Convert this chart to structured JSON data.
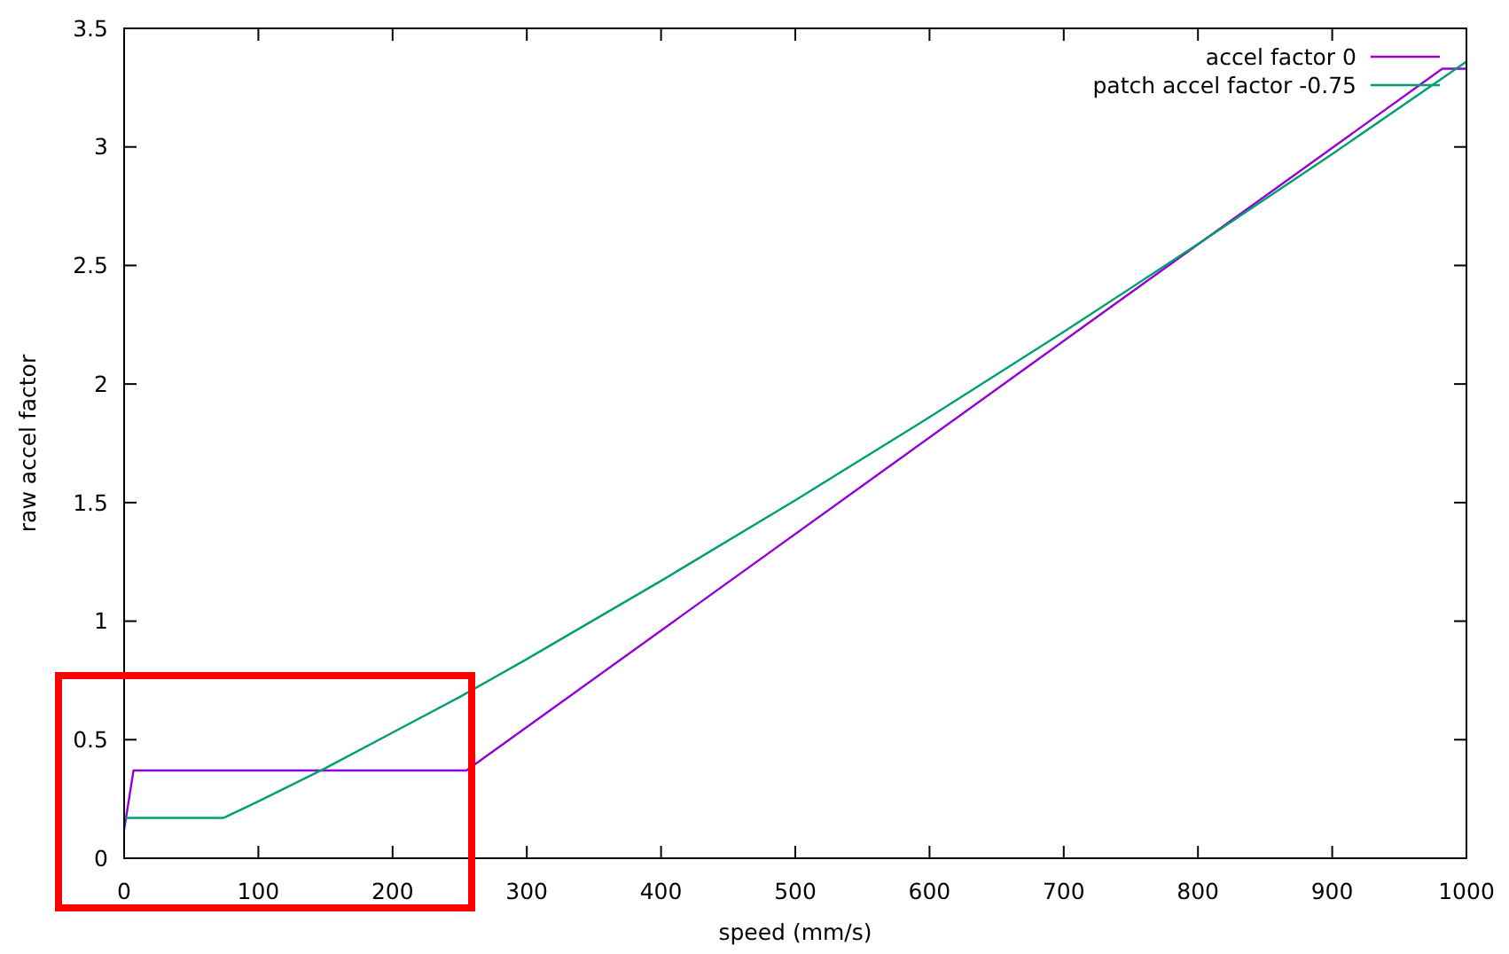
{
  "chart_data": {
    "type": "line",
    "xlabel": "speed (mm/s)",
    "ylabel": "raw accel factor",
    "xlim": [
      0,
      1000
    ],
    "ylim": [
      0,
      3.5
    ],
    "xticks": [
      0,
      100,
      200,
      300,
      400,
      500,
      600,
      700,
      800,
      900,
      1000
    ],
    "yticks": [
      0,
      0.5,
      1,
      1.5,
      2,
      2.5,
      3,
      3.5
    ],
    "legend": "top right",
    "series": [
      {
        "name": "accel factor 0",
        "color": "#9400d3",
        "x": [
          0,
          7,
          255,
          982,
          1000
        ],
        "values": [
          0.12,
          0.37,
          0.37,
          3.33,
          3.33
        ]
      },
      {
        "name": "patch accel factor -0.75",
        "color": "#009e73",
        "x": [
          0,
          74,
          100,
          150,
          200,
          250,
          300,
          400,
          500,
          600,
          700,
          800,
          900,
          1000
        ],
        "values": [
          0.17,
          0.17,
          0.24,
          0.38,
          0.53,
          0.68,
          0.84,
          1.17,
          1.51,
          1.86,
          2.22,
          2.59,
          2.97,
          3.36
        ]
      }
    ]
  }
}
